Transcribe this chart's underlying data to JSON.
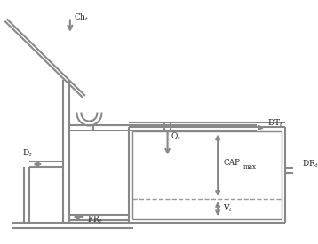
{
  "bg_color": "#ffffff",
  "line_color": "#888888",
  "line_width": 1.5,
  "thin_lw": 1.0,
  "text_color": "#222222",
  "dashed_color": "#999999",
  "fig_width": 3.58,
  "fig_height": 2.75,
  "dpi": 100,
  "xlim": [
    0,
    10
  ],
  "ylim": [
    0,
    7.5
  ]
}
